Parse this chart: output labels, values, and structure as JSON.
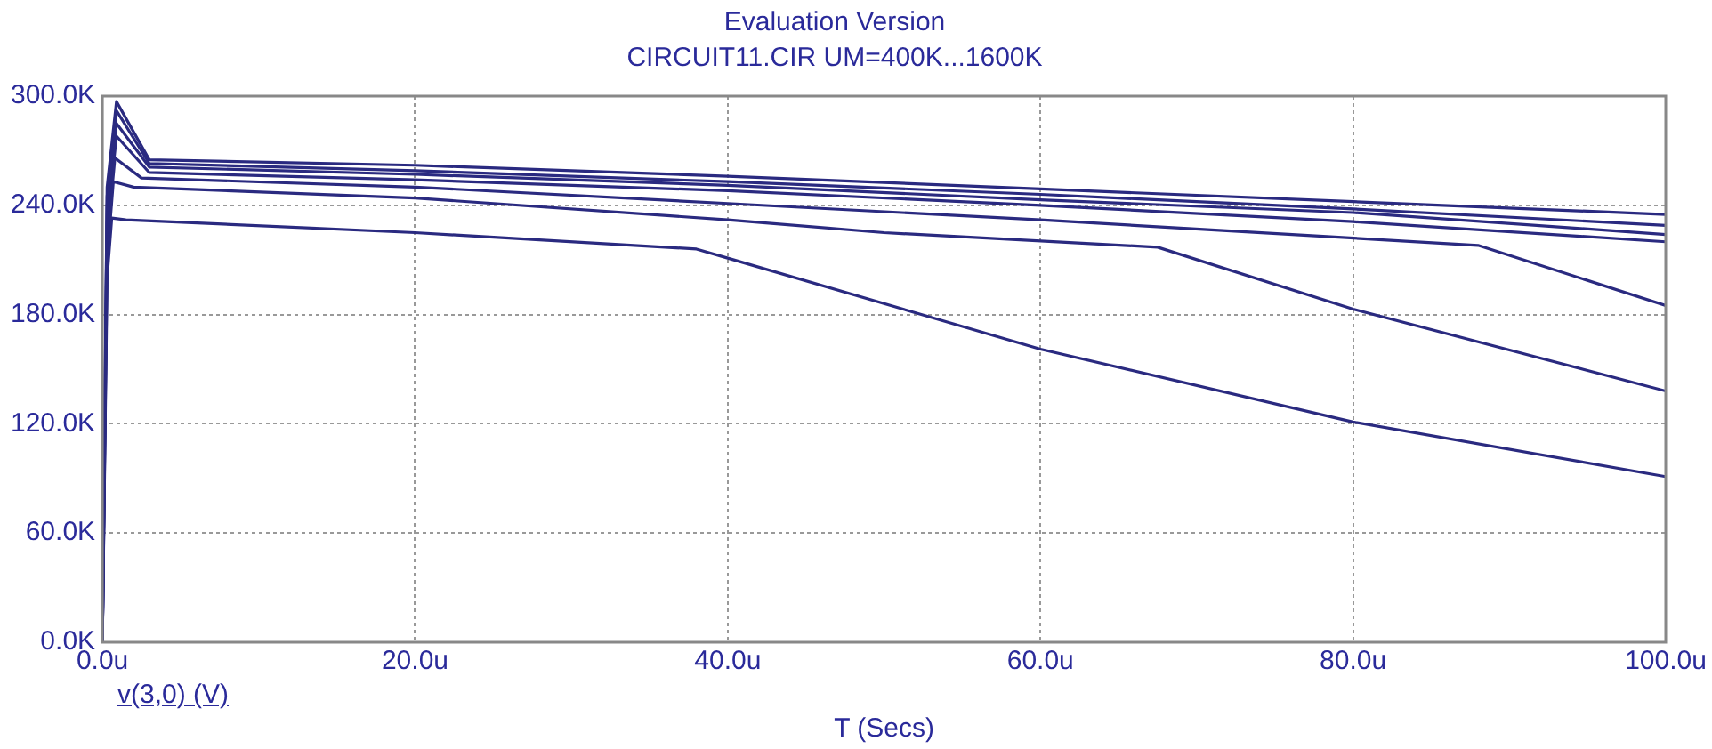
{
  "chart_data": {
    "type": "line",
    "title": "Evaluation Version",
    "subtitle": "CIRCUIT11.CIR UM=400K...1600K",
    "xlabel": "T (Secs)",
    "annotations": [
      "v(3,0) (V)"
    ],
    "series": [
      {
        "color": "#2a2a80",
        "x": [
          0,
          0.3,
          0.6,
          1.5,
          20,
          38,
          40,
          60,
          80,
          100
        ],
        "values": [
          0,
          200,
          233,
          232,
          225,
          216,
          211,
          161,
          121,
          91
        ]
      },
      {
        "color": "#2a2a80",
        "x": [
          0,
          0.3,
          0.7,
          2,
          20,
          40,
          50,
          67.5,
          80,
          100
        ],
        "values": [
          0,
          210,
          253,
          250,
          244,
          232,
          225,
          217,
          183,
          138
        ]
      },
      {
        "color": "#2a2a80",
        "x": [
          0,
          0.3,
          0.8,
          2.5,
          20,
          40,
          60,
          88,
          100
        ],
        "values": [
          0,
          220,
          266,
          255,
          250,
          241,
          232,
          218,
          185
        ]
      },
      {
        "color": "#2a2a80",
        "x": [
          0,
          0.3,
          0.9,
          3,
          20,
          40,
          60,
          80,
          100
        ],
        "values": [
          0,
          230,
          278,
          258,
          254,
          248,
          240,
          231,
          220
        ]
      },
      {
        "color": "#2a2a80",
        "x": [
          0,
          0.3,
          0.9,
          3,
          20,
          40,
          60,
          80,
          100
        ],
        "values": [
          0,
          240,
          285,
          261,
          257,
          251,
          243,
          236,
          224
        ]
      },
      {
        "color": "#2a2a80",
        "x": [
          0,
          0.3,
          0.9,
          3,
          20,
          40,
          60,
          80,
          100
        ],
        "values": [
          0,
          245,
          292,
          263,
          259,
          253,
          246,
          238,
          229
        ]
      },
      {
        "color": "#2a2a80",
        "x": [
          0,
          0.3,
          0.9,
          3,
          20,
          40,
          60,
          80,
          100
        ],
        "values": [
          0,
          250,
          297,
          265,
          262,
          256,
          249,
          242,
          235
        ]
      }
    ],
    "xlim": [
      0,
      100
    ],
    "xticks": [
      {
        "value": 0,
        "label": "0.0u"
      },
      {
        "value": 20,
        "label": "20.0u"
      },
      {
        "value": 40,
        "label": "40.0u"
      },
      {
        "value": 60,
        "label": "60.0u"
      },
      {
        "value": 80,
        "label": "80.0u"
      },
      {
        "value": 100,
        "label": "100.0u"
      }
    ],
    "ylim": [
      0,
      300
    ],
    "yticks": [
      {
        "value": 0,
        "label": "0.0K"
      },
      {
        "value": 60,
        "label": "60.0K"
      },
      {
        "value": 120,
        "label": "120.0K"
      },
      {
        "value": 180,
        "label": "180.0K"
      },
      {
        "value": 240,
        "label": "240.0K"
      },
      {
        "value": 300,
        "label": "300.0K"
      }
    ],
    "grid": true,
    "legend": false,
    "marker": "none",
    "line_style": "solid"
  }
}
